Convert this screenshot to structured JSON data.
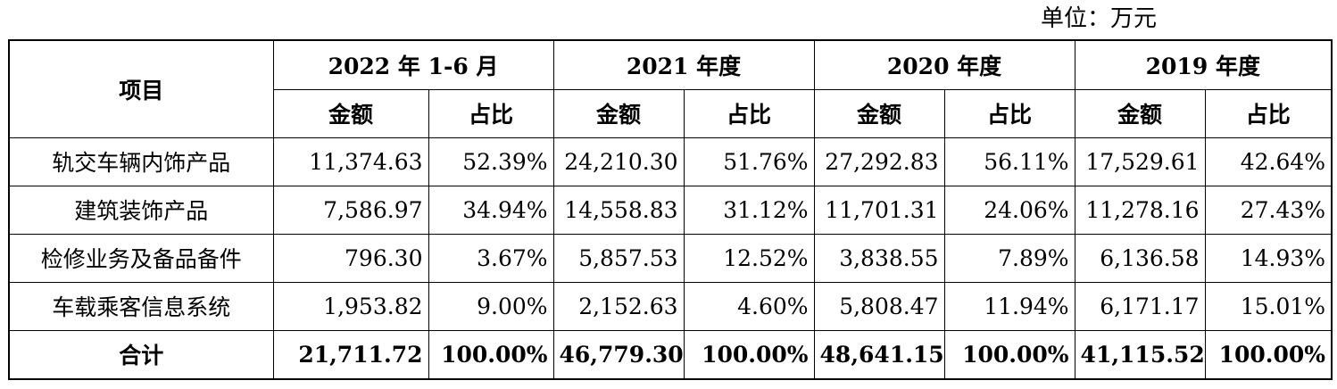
{
  "unit_label": "单位：万元",
  "headers": {
    "item": "项目",
    "periods": [
      "2022 年 1-6 月",
      "2021 年度",
      "2020 年度",
      "2019 年度"
    ],
    "amount": "金额",
    "ratio": "占比"
  },
  "rows": [
    {
      "label": "轨交车辆内饰产品",
      "values": [
        {
          "amount": "11,374.63",
          "ratio": "52.39%"
        },
        {
          "amount": "24,210.30",
          "ratio": "51.76%"
        },
        {
          "amount": "27,292.83",
          "ratio": "56.11%"
        },
        {
          "amount": "17,529.61",
          "ratio": "42.64%"
        }
      ]
    },
    {
      "label": "建筑装饰产品",
      "values": [
        {
          "amount": "7,586.97",
          "ratio": "34.94%"
        },
        {
          "amount": "14,558.83",
          "ratio": "31.12%"
        },
        {
          "amount": "11,701.31",
          "ratio": "24.06%"
        },
        {
          "amount": "11,278.16",
          "ratio": "27.43%"
        }
      ]
    },
    {
      "label": "检修业务及备品备件",
      "values": [
        {
          "amount": "796.30",
          "ratio": "3.67%"
        },
        {
          "amount": "5,857.53",
          "ratio": "12.52%"
        },
        {
          "amount": "3,838.55",
          "ratio": "7.89%"
        },
        {
          "amount": "6,136.58",
          "ratio": "14.93%"
        }
      ]
    },
    {
      "label": "车载乘客信息系统",
      "values": [
        {
          "amount": "1,953.82",
          "ratio": "9.00%"
        },
        {
          "amount": "2,152.63",
          "ratio": "4.60%"
        },
        {
          "amount": "5,808.47",
          "ratio": "11.94%"
        },
        {
          "amount": "6,171.17",
          "ratio": "15.01%"
        }
      ]
    }
  ],
  "total": {
    "label": "合计",
    "values": [
      {
        "amount": "21,711.72",
        "ratio": "100.00%"
      },
      {
        "amount": "46,779.30",
        "ratio": "100.00%"
      },
      {
        "amount": "48,641.15",
        "ratio": "100.00%"
      },
      {
        "amount": "41,115.52",
        "ratio": "100.00%"
      }
    ]
  }
}
